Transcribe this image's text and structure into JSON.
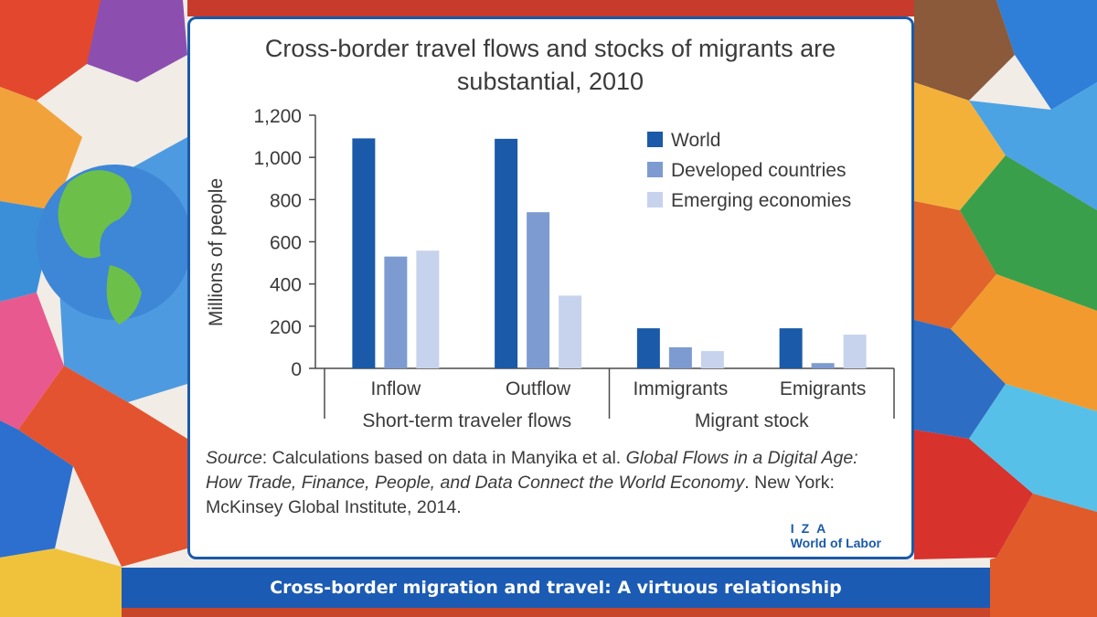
{
  "banner": {
    "text": "Cross-border migration and travel: A virtuous relationship"
  },
  "source": {
    "label": "Source",
    "text_1": ": Calculations based on data in Manyika et al. ",
    "title": "Global Flows in a Digital Age: How Trade, Finance, People, and Data Connect the World Economy",
    "text_2": ". New York: McKinsey Global Institute, 2014."
  },
  "logo": {
    "line1": "IZA",
    "line2": "World of Labor"
  },
  "colors": {
    "world": "#1a5aa8",
    "developed": "#7d9bd0",
    "emerging": "#c7d3ec",
    "axis": "#4a4a4a",
    "banner": "#1c5bb3"
  },
  "chart_data": {
    "type": "bar",
    "title_line1": "Cross-border travel flows and stocks of migrants are",
    "title_line2": "substantial, 2010",
    "ylabel": "Millions of people",
    "ylim": [
      0,
      1200
    ],
    "yticks": [
      0,
      200,
      400,
      600,
      800,
      1000,
      1200
    ],
    "ytick_labels": [
      "0",
      "200",
      "400",
      "600",
      "800",
      "1,000",
      "1,200"
    ],
    "categories": [
      "Inflow",
      "Outflow",
      "Immigrants",
      "Emigrants"
    ],
    "groups": [
      {
        "label": "Short-term traveler flows",
        "categories": [
          "Inflow",
          "Outflow"
        ]
      },
      {
        "label": "Migrant stock",
        "categories": [
          "Immigrants",
          "Emigrants"
        ]
      }
    ],
    "series": [
      {
        "name": "World",
        "values": [
          1090,
          1088,
          190,
          190
        ]
      },
      {
        "name": "Developed countries",
        "values": [
          530,
          740,
          100,
          25
        ]
      },
      {
        "name": "Emerging economies",
        "values": [
          558,
          345,
          82,
          160
        ]
      }
    ],
    "legend": "top-right",
    "grid": false
  }
}
